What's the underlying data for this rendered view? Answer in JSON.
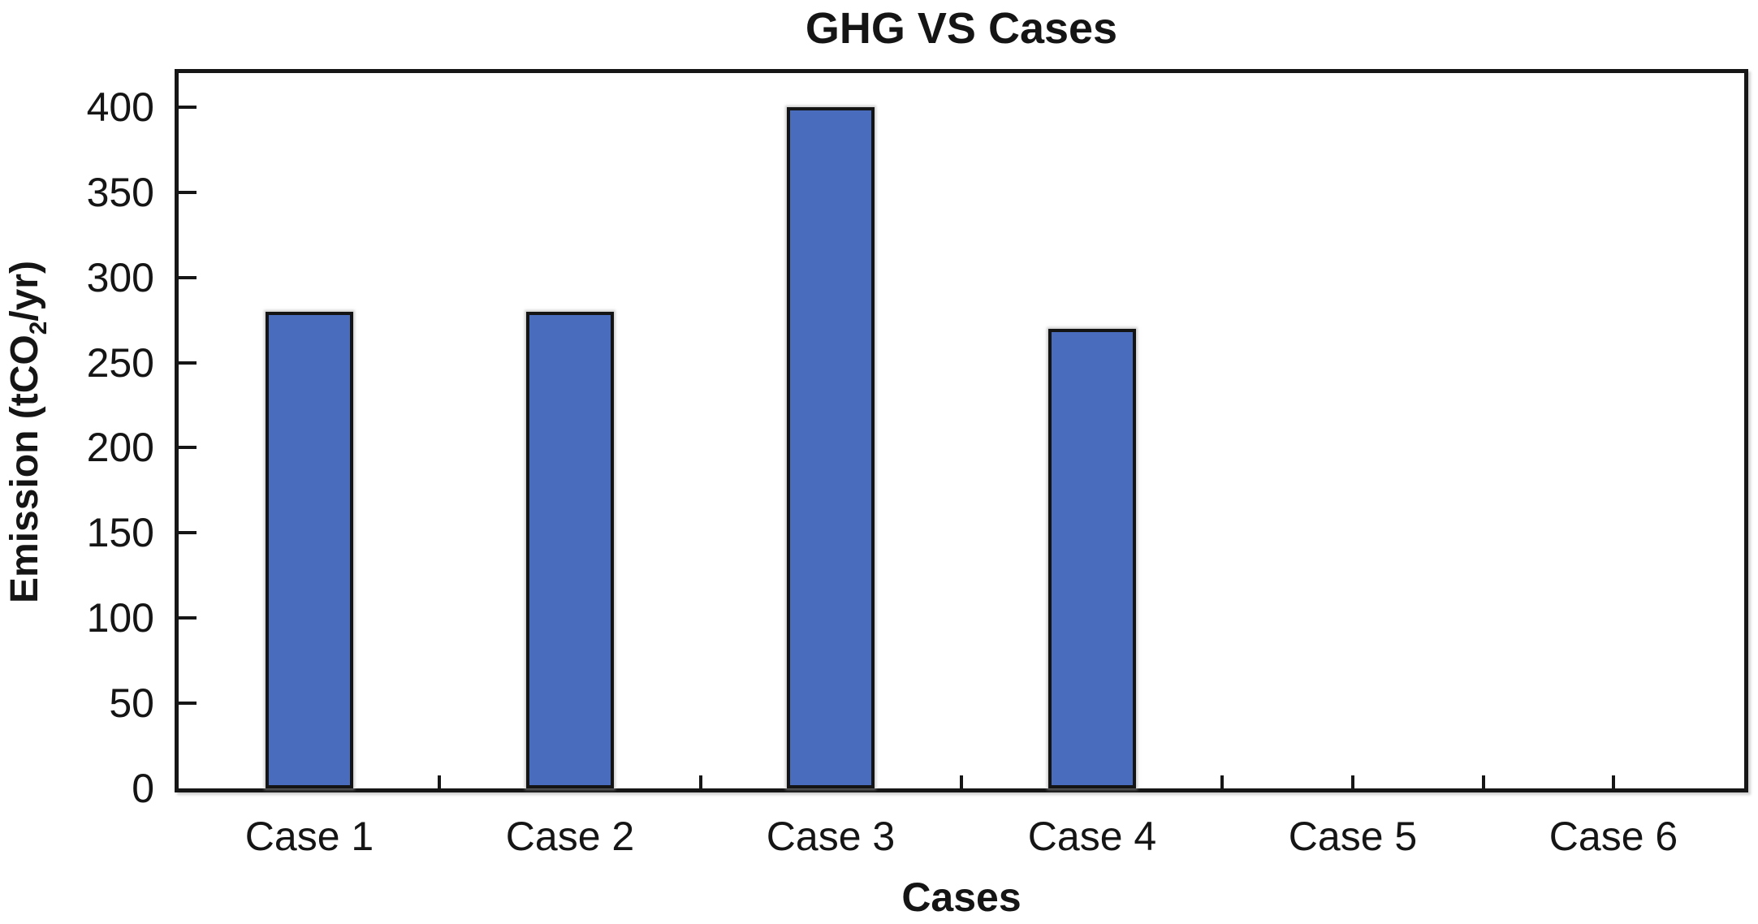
{
  "chart_data": {
    "type": "bar",
    "title": "GHG VS Cases",
    "xlabel": "Cases",
    "ylabel": "Emission (tCO2/yr)",
    "ylabel_parts": {
      "prefix": "Emission (tCO",
      "sub": "2",
      "suffix": "/yr)"
    },
    "categories": [
      "Case 1",
      "Case 2",
      "Case 3",
      "Case 4",
      "Case 5",
      "Case 6"
    ],
    "values": [
      280,
      280,
      400,
      270,
      0,
      0
    ],
    "yticks": [
      0,
      50,
      100,
      150,
      200,
      250,
      300,
      350,
      400
    ],
    "ylim": [
      0,
      420
    ],
    "grid": false,
    "legend": false,
    "bar_fill_color": "#4a6cbd",
    "bar_border_color": "#141414",
    "axis_color": "#161616",
    "background_color": "#ffffff"
  }
}
